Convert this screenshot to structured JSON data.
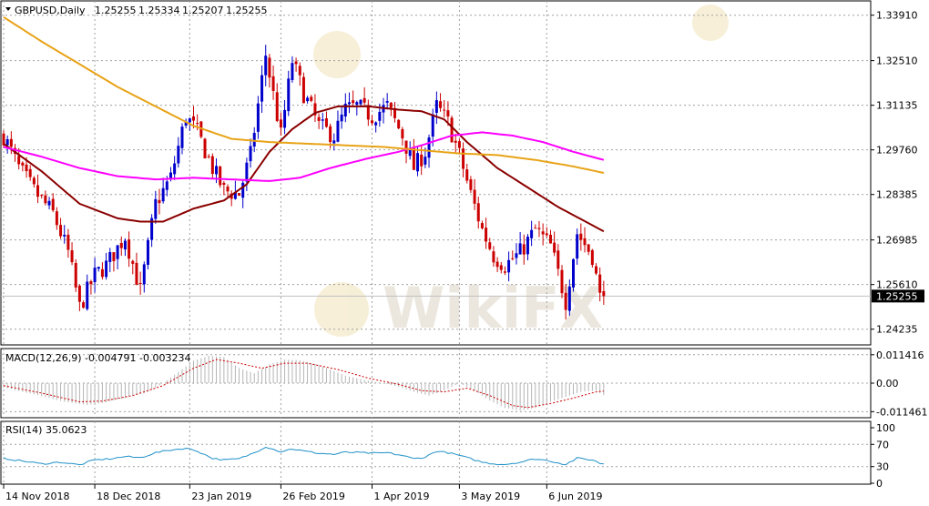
{
  "chart_data": [
    {
      "type": "candlestick",
      "title": "GBPUSD,Daily",
      "ohlc_header": {
        "open": "1.25255",
        "high": "1.25334",
        "low": "1.25207",
        "close": "1.25255"
      },
      "ylim": [
        1.2375,
        1.3435
      ],
      "y_ticks": [
        "1.33910",
        "1.32510",
        "1.31135",
        "1.29760",
        "1.28385",
        "1.26985",
        "1.25610",
        "1.24235"
      ],
      "current_price_label": "1.25255",
      "current_price": 1.25255,
      "x_tick_labels": [
        "14 Nov 2018",
        "18 Dec 2018",
        "23 Jan 2019",
        "26 Feb 2019",
        "1 Apr 2019",
        "3 May 2019",
        "6 Jun 2019"
      ],
      "x_tick_bar_index": [
        0,
        24,
        49,
        73,
        97,
        120,
        143
      ],
      "bull_color": "#0000cc",
      "bear_color": "#cc0000",
      "price_keypoints": [
        [
          0,
          1.302
        ],
        [
          4,
          1.292
        ],
        [
          8,
          1.285
        ],
        [
          13,
          1.278
        ],
        [
          17,
          1.266
        ],
        [
          20,
          1.249
        ],
        [
          24,
          1.259
        ],
        [
          27,
          1.262
        ],
        [
          32,
          1.271
        ],
        [
          36,
          1.254
        ],
        [
          40,
          1.281
        ],
        [
          44,
          1.289
        ],
        [
          48,
          1.308
        ],
        [
          51,
          1.303
        ],
        [
          55,
          1.292
        ],
        [
          58,
          1.285
        ],
        [
          62,
          1.284
        ],
        [
          65,
          1.296
        ],
        [
          69,
          1.327
        ],
        [
          73,
          1.302
        ],
        [
          76,
          1.325
        ],
        [
          79,
          1.315
        ],
        [
          83,
          1.305
        ],
        [
          87,
          1.302
        ],
        [
          90,
          1.31
        ],
        [
          93,
          1.311
        ],
        [
          97,
          1.308
        ],
        [
          101,
          1.311
        ],
        [
          105,
          1.302
        ],
        [
          108,
          1.292
        ],
        [
          111,
          1.297
        ],
        [
          114,
          1.311
        ],
        [
          117,
          1.306
        ],
        [
          120,
          1.296
        ],
        [
          123,
          1.284
        ],
        [
          126,
          1.273
        ],
        [
          129,
          1.265
        ],
        [
          132,
          1.262
        ],
        [
          136,
          1.266
        ],
        [
          140,
          1.273
        ],
        [
          144,
          1.268
        ],
        [
          148,
          1.251
        ],
        [
          151,
          1.272
        ],
        [
          155,
          1.265
        ],
        [
          157,
          1.252
        ],
        [
          158,
          1.2526
        ]
      ],
      "series": [
        {
          "color": "#8b0000",
          "points": [
            [
              0,
              1.2995
            ],
            [
              10,
              1.291
            ],
            [
              20,
              1.281
            ],
            [
              30,
              1.2765
            ],
            [
              36,
              1.2755
            ],
            [
              42,
              1.2755
            ],
            [
              50,
              1.2795
            ],
            [
              58,
              1.282
            ],
            [
              64,
              1.287
            ],
            [
              70,
              1.297
            ],
            [
              76,
              1.304
            ],
            [
              82,
              1.309
            ],
            [
              88,
              1.311
            ],
            [
              96,
              1.311
            ],
            [
              104,
              1.31
            ],
            [
              110,
              1.3095
            ],
            [
              116,
              1.307
            ],
            [
              122,
              1.3
            ],
            [
              130,
              1.292
            ],
            [
              138,
              1.286
            ],
            [
              146,
              1.28
            ],
            [
              154,
              1.275
            ],
            [
              158,
              1.2725
            ]
          ]
        },
        {
          "color": "#ff00ff",
          "points": [
            [
              0,
              1.2985
            ],
            [
              10,
              1.2955
            ],
            [
              20,
              1.292
            ],
            [
              30,
              1.2895
            ],
            [
              40,
              1.2885
            ],
            [
              50,
              1.289
            ],
            [
              60,
              1.2885
            ],
            [
              70,
              1.288
            ],
            [
              78,
              1.289
            ],
            [
              86,
              1.292
            ],
            [
              96,
              1.295
            ],
            [
              104,
              1.297
            ],
            [
              110,
              1.299
            ],
            [
              118,
              1.302
            ],
            [
              126,
              1.303
            ],
            [
              134,
              1.302
            ],
            [
              142,
              1.3
            ],
            [
              150,
              1.297
            ],
            [
              158,
              1.2945
            ]
          ]
        },
        {
          "color": "#e8a317",
          "points": [
            [
              0,
              1.3385
            ],
            [
              10,
              1.331
            ],
            [
              20,
              1.324
            ],
            [
              30,
              1.317
            ],
            [
              40,
              1.311
            ],
            [
              50,
              1.305
            ],
            [
              60,
              1.301
            ],
            [
              70,
              1.3
            ],
            [
              80,
              1.2995
            ],
            [
              90,
              1.299
            ],
            [
              100,
              1.2985
            ],
            [
              110,
              1.2975
            ],
            [
              120,
              1.2965
            ],
            [
              130,
              1.296
            ],
            [
              140,
              1.2945
            ],
            [
              150,
              1.2925
            ],
            [
              158,
              1.2905
            ]
          ]
        }
      ]
    },
    {
      "type": "bar",
      "title": "MACD(12,26,9) -0.004791 -0.003234",
      "ylim": [
        -0.0139,
        0.0139
      ],
      "y_ticks": [
        "0.011416",
        "0.00",
        "-0.011461"
      ],
      "histogram_color": "#b4b4b4",
      "signal_color": "#cc0000",
      "histogram_keypoints": [
        [
          0,
          -0.0018
        ],
        [
          8,
          -0.0045
        ],
        [
          16,
          -0.0075
        ],
        [
          22,
          -0.0088
        ],
        [
          26,
          -0.008
        ],
        [
          32,
          -0.006
        ],
        [
          38,
          -0.0035
        ],
        [
          42,
          0.0
        ],
        [
          46,
          0.0045
        ],
        [
          50,
          0.009
        ],
        [
          54,
          0.011
        ],
        [
          58,
          0.0105
        ],
        [
          62,
          0.006
        ],
        [
          66,
          0.004
        ],
        [
          70,
          0.0075
        ],
        [
          74,
          0.0095
        ],
        [
          78,
          0.0092
        ],
        [
          82,
          0.0078
        ],
        [
          86,
          0.0055
        ],
        [
          90,
          0.003
        ],
        [
          96,
          0.001
        ],
        [
          100,
          0.0
        ],
        [
          104,
          -0.0015
        ],
        [
          108,
          -0.0035
        ],
        [
          112,
          -0.005
        ],
        [
          116,
          -0.003
        ],
        [
          120,
          0.0
        ],
        [
          124,
          -0.003
        ],
        [
          128,
          -0.007
        ],
        [
          132,
          -0.01
        ],
        [
          136,
          -0.011
        ],
        [
          140,
          -0.01
        ],
        [
          144,
          -0.0075
        ],
        [
          148,
          -0.0055
        ],
        [
          152,
          -0.0035
        ],
        [
          156,
          -0.003
        ],
        [
          158,
          -0.0048
        ]
      ],
      "signal_keypoints": [
        [
          0,
          -0.001
        ],
        [
          10,
          -0.004
        ],
        [
          20,
          -0.0075
        ],
        [
          26,
          -0.0072
        ],
        [
          34,
          -0.005
        ],
        [
          42,
          -0.001
        ],
        [
          50,
          0.006
        ],
        [
          56,
          0.0095
        ],
        [
          62,
          0.008
        ],
        [
          68,
          0.006
        ],
        [
          74,
          0.008
        ],
        [
          80,
          0.008
        ],
        [
          88,
          0.0055
        ],
        [
          96,
          0.002
        ],
        [
          104,
          -0.0005
        ],
        [
          110,
          -0.003
        ],
        [
          116,
          -0.0035
        ],
        [
          122,
          -0.002
        ],
        [
          128,
          -0.005
        ],
        [
          134,
          -0.009
        ],
        [
          138,
          -0.0098
        ],
        [
          144,
          -0.0082
        ],
        [
          150,
          -0.006
        ],
        [
          156,
          -0.0035
        ],
        [
          158,
          -0.0032
        ]
      ]
    },
    {
      "type": "line",
      "title": "RSI(14) 35.0623",
      "ylim": [
        0,
        100
      ],
      "y_ticks": [
        "100",
        "70",
        "30",
        "0"
      ],
      "y_tick_values": [
        100,
        70,
        30,
        0
      ],
      "line_color": "#1e90c8",
      "level_values": [
        70,
        30
      ],
      "rsi_keypoints": [
        [
          0,
          45
        ],
        [
          5,
          40
        ],
        [
          10,
          35
        ],
        [
          15,
          38
        ],
        [
          20,
          33
        ],
        [
          24,
          42
        ],
        [
          28,
          44
        ],
        [
          32,
          48
        ],
        [
          36,
          46
        ],
        [
          40,
          55
        ],
        [
          44,
          60
        ],
        [
          48,
          63
        ],
        [
          51,
          58
        ],
        [
          55,
          45
        ],
        [
          58,
          42
        ],
        [
          62,
          44
        ],
        [
          66,
          55
        ],
        [
          69,
          66
        ],
        [
          73,
          57
        ],
        [
          76,
          62
        ],
        [
          79,
          58
        ],
        [
          83,
          54
        ],
        [
          87,
          52
        ],
        [
          90,
          56
        ],
        [
          94,
          55
        ],
        [
          98,
          54
        ],
        [
          101,
          55
        ],
        [
          105,
          50
        ],
        [
          108,
          44
        ],
        [
          111,
          47
        ],
        [
          114,
          58
        ],
        [
          117,
          55
        ],
        [
          120,
          50
        ],
        [
          123,
          44
        ],
        [
          126,
          38
        ],
        [
          129,
          35
        ],
        [
          132,
          34
        ],
        [
          136,
          38
        ],
        [
          140,
          44
        ],
        [
          144,
          40
        ],
        [
          148,
          34
        ],
        [
          151,
          45
        ],
        [
          155,
          42
        ],
        [
          157,
          36
        ],
        [
          158,
          35.06
        ]
      ]
    }
  ],
  "watermark_text": "WikiFX"
}
